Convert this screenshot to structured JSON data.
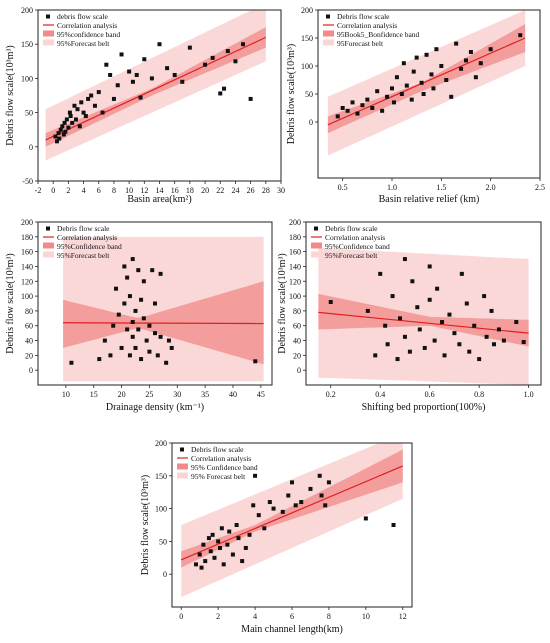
{
  "chart_data": [
    {
      "type": "scatter",
      "xlabel": "Basin area(km²)",
      "ylabel": "Debris flow scale(10³m³)",
      "xlim": [
        -2,
        30
      ],
      "ylim": [
        -50,
        200
      ],
      "xticks": [
        "-2",
        "0",
        "2",
        "4",
        "6",
        "8",
        "10",
        "12",
        "14",
        "16",
        "18",
        "20",
        "22",
        "24",
        "26",
        "28",
        "30"
      ],
      "yticks": [
        "-50",
        "0",
        "50",
        "100",
        "150",
        "200"
      ],
      "legend": {
        "position": "top-left",
        "entries": [
          "debris flow scale",
          "Correlation analysis",
          "95%confidence band",
          "95%Forecast belt"
        ]
      },
      "x": [
        0.3,
        0.5,
        0.7,
        0.8,
        1.0,
        1.2,
        1.4,
        1.5,
        1.6,
        1.8,
        2.0,
        2.2,
        2.3,
        2.5,
        2.8,
        3.0,
        3.2,
        3.5,
        3.7,
        4.0,
        4.3,
        4.6,
        5.0,
        5.5,
        6.0,
        6.5,
        7.0,
        7.5,
        8.0,
        8.5,
        9.0,
        10.0,
        10.5,
        11.0,
        11.5,
        12.0,
        13.0,
        14.0,
        15.0,
        16.0,
        17.0,
        18.0,
        20.0,
        21.0,
        22.0,
        22.5,
        23.0,
        24.0,
        25.0,
        26.0
      ],
      "y": [
        15,
        8,
        20,
        12,
        25,
        30,
        18,
        35,
        22,
        40,
        28,
        50,
        45,
        35,
        60,
        40,
        55,
        30,
        65,
        50,
        45,
        70,
        75,
        60,
        80,
        50,
        120,
        105,
        70,
        90,
        135,
        110,
        95,
        105,
        72,
        128,
        100,
        150,
        115,
        105,
        95,
        145,
        120,
        130,
        78,
        85,
        140,
        125,
        150,
        70
      ],
      "fit": {
        "x": [
          -1,
          28
        ],
        "y": [
          10,
          160
        ]
      },
      "conf_band": {
        "x": [
          -1,
          13,
          28
        ],
        "lo": [
          0,
          75,
          145
        ],
        "hi": [
          20,
          85,
          175
        ]
      },
      "forecast_band": {
        "x": [
          -1,
          28
        ],
        "lo": [
          -20,
          125
        ],
        "hi": [
          55,
          210
        ]
      }
    },
    {
      "type": "scatter",
      "xlabel": "Basin relative relief (km)",
      "ylabel": "Debris flow scale(10³m³)",
      "xlim": [
        0.25,
        2.5
      ],
      "ylim": [
        -100,
        200
      ],
      "xticks": [
        "0.5",
        "1.0",
        "1.5",
        "2.0",
        "2.5"
      ],
      "yticks": [
        "0",
        "50",
        "100",
        "150",
        "200"
      ],
      "legend": {
        "position": "top-left",
        "entries": [
          "Debris flow scale",
          "Correlation analysis",
          "95Book5_Bonfidence band",
          "95Forecast belt"
        ]
      },
      "x": [
        0.45,
        0.5,
        0.55,
        0.6,
        0.65,
        0.7,
        0.75,
        0.8,
        0.85,
        0.9,
        0.95,
        1.0,
        1.02,
        1.05,
        1.1,
        1.12,
        1.15,
        1.2,
        1.22,
        1.25,
        1.3,
        1.32,
        1.35,
        1.4,
        1.42,
        1.45,
        1.5,
        1.55,
        1.6,
        1.65,
        1.7,
        1.75,
        1.8,
        1.85,
        1.9,
        2.0,
        2.3
      ],
      "y": [
        10,
        25,
        20,
        35,
        15,
        30,
        40,
        25,
        55,
        20,
        45,
        60,
        35,
        80,
        50,
        105,
        65,
        40,
        90,
        115,
        70,
        50,
        120,
        85,
        60,
        130,
        100,
        75,
        45,
        140,
        95,
        110,
        125,
        80,
        105,
        130,
        155
      ],
      "fit": {
        "x": [
          0.35,
          2.35
        ],
        "y": [
          -5,
          150
        ]
      },
      "conf_band": {
        "x": [
          0.35,
          1.3,
          2.35
        ],
        "lo": [
          -20,
          55,
          125
        ],
        "hi": [
          10,
          70,
          175
        ]
      },
      "forecast_band": {
        "x": [
          0.35,
          2.35
        ],
        "lo": [
          -60,
          100
        ],
        "hi": [
          45,
          200
        ]
      }
    },
    {
      "type": "scatter",
      "xlabel": "Drainage density (km⁻¹)",
      "ylabel": "Debris flow scale(10³m³)",
      "xlim": [
        5,
        47
      ],
      "ylim": [
        -20,
        200
      ],
      "xticks": [
        "10",
        "15",
        "20",
        "25",
        "30",
        "35",
        "40",
        "45"
      ],
      "yticks": [
        "0",
        "20",
        "40",
        "60",
        "80",
        "100",
        "120",
        "140",
        "160",
        "180",
        "200"
      ],
      "legend": {
        "position": "top-left",
        "entries": [
          "Debris flow scale",
          "Correlation analysis",
          "95%Confidence band",
          "95%Forecast belt"
        ]
      },
      "x": [
        11,
        16,
        17,
        18,
        18.5,
        19,
        19.5,
        20,
        20.5,
        20.5,
        21,
        21,
        21.5,
        21.5,
        22,
        22,
        22,
        22.5,
        22.5,
        23,
        23,
        23.5,
        23.5,
        24,
        24,
        24.5,
        25,
        25,
        25.5,
        26,
        26,
        26.5,
        27,
        27,
        28,
        28.5,
        29,
        44
      ],
      "y": [
        10,
        15,
        40,
        20,
        60,
        110,
        75,
        30,
        140,
        90,
        55,
        125,
        20,
        100,
        45,
        150,
        65,
        80,
        30,
        135,
        55,
        95,
        15,
        70,
        120,
        40,
        60,
        25,
        135,
        50,
        90,
        20,
        45,
        130,
        10,
        40,
        30,
        12
      ],
      "fit": {
        "x": [
          9.5,
          45.5
        ],
        "y": [
          64,
          63
        ]
      },
      "conf_band": {
        "x": [
          9.5,
          23,
          45.5
        ],
        "lo": [
          30,
          57,
          8
        ],
        "hi": [
          95,
          70,
          120
        ]
      },
      "forecast_band": {
        "x": [
          9.5,
          45.5
        ],
        "lo": [
          -15,
          -15
        ],
        "hi": [
          180,
          180
        ]
      }
    },
    {
      "type": "scatter",
      "xlabel": "Shifting bed proportion(100%)",
      "ylabel": "Debris flow scale(10³m³)",
      "xlim": [
        0.1,
        1.05
      ],
      "ylim": [
        -20,
        200
      ],
      "xticks": [
        "0.2",
        "0.4",
        "0.6",
        "0.8",
        "1.0"
      ],
      "yticks": [
        "0",
        "20",
        "40",
        "60",
        "80",
        "100",
        "120",
        "140",
        "160",
        "180",
        "200"
      ],
      "legend": {
        "position": "top-left",
        "entries": [
          "Debris flow scale",
          "Correlation analysis",
          "95%Confidence band",
          "95%Forecast belt"
        ]
      },
      "x": [
        0.2,
        0.35,
        0.38,
        0.4,
        0.42,
        0.43,
        0.45,
        0.47,
        0.48,
        0.5,
        0.5,
        0.52,
        0.53,
        0.55,
        0.56,
        0.58,
        0.6,
        0.6,
        0.62,
        0.63,
        0.65,
        0.66,
        0.68,
        0.7,
        0.72,
        0.73,
        0.75,
        0.76,
        0.78,
        0.8,
        0.82,
        0.83,
        0.85,
        0.86,
        0.88,
        0.9,
        0.95,
        0.98
      ],
      "y": [
        92,
        80,
        20,
        130,
        60,
        35,
        100,
        15,
        70,
        150,
        45,
        25,
        120,
        85,
        55,
        30,
        140,
        95,
        40,
        110,
        65,
        20,
        75,
        50,
        35,
        130,
        90,
        25,
        60,
        15,
        100,
        45,
        80,
        35,
        55,
        40,
        65,
        38
      ],
      "fit": {
        "x": [
          0.15,
          1.0
        ],
        "y": [
          78,
          50
        ]
      },
      "conf_band": {
        "x": [
          0.15,
          0.6,
          1.0
        ],
        "lo": [
          55,
          60,
          32
        ],
        "hi": [
          103,
          72,
          68
        ]
      },
      "forecast_band": {
        "x": [
          0.15,
          1.0
        ],
        "lo": [
          -10,
          -20
        ],
        "hi": [
          165,
          150
        ]
      }
    },
    {
      "type": "scatter",
      "xlabel": "Main channel length(km)",
      "ylabel": "Debris flow scale(10³m³)",
      "xlim": [
        -0.5,
        12.5
      ],
      "ylim": [
        -50,
        200
      ],
      "xticks": [
        "0",
        "2",
        "4",
        "6",
        "8",
        "10",
        "12"
      ],
      "yticks": [
        "0",
        "50",
        "100",
        "150",
        "200"
      ],
      "legend": {
        "position": "top-left",
        "entries": [
          "Debris flow scale",
          "Correlation analysis",
          "95% Confidence band",
          "95% Forecast belt"
        ]
      },
      "x": [
        0.8,
        1.0,
        1.1,
        1.2,
        1.3,
        1.5,
        1.6,
        1.7,
        1.8,
        2.0,
        2.1,
        2.2,
        2.3,
        2.5,
        2.6,
        2.8,
        3.0,
        3.1,
        3.3,
        3.5,
        3.7,
        3.9,
        4.0,
        4.2,
        4.5,
        4.8,
        5.0,
        5.5,
        5.8,
        6.0,
        6.2,
        6.5,
        7.0,
        7.5,
        7.6,
        7.8,
        8.0,
        10.0,
        11.5
      ],
      "y": [
        15,
        30,
        10,
        45,
        20,
        55,
        35,
        60,
        25,
        50,
        40,
        70,
        15,
        45,
        65,
        30,
        75,
        55,
        20,
        40,
        60,
        105,
        150,
        90,
        70,
        110,
        100,
        95,
        120,
        140,
        105,
        110,
        130,
        150,
        120,
        105,
        140,
        85,
        75
      ],
      "fit": {
        "x": [
          0,
          12
        ],
        "y": [
          22,
          165
        ]
      },
      "conf_band": {
        "x": [
          0,
          4,
          12
        ],
        "lo": [
          10,
          65,
          140
        ],
        "hi": [
          35,
          75,
          190
        ]
      },
      "forecast_band": {
        "x": [
          0,
          12
        ],
        "lo": [
          -35,
          115
        ],
        "hi": [
          75,
          215
        ]
      }
    }
  ]
}
